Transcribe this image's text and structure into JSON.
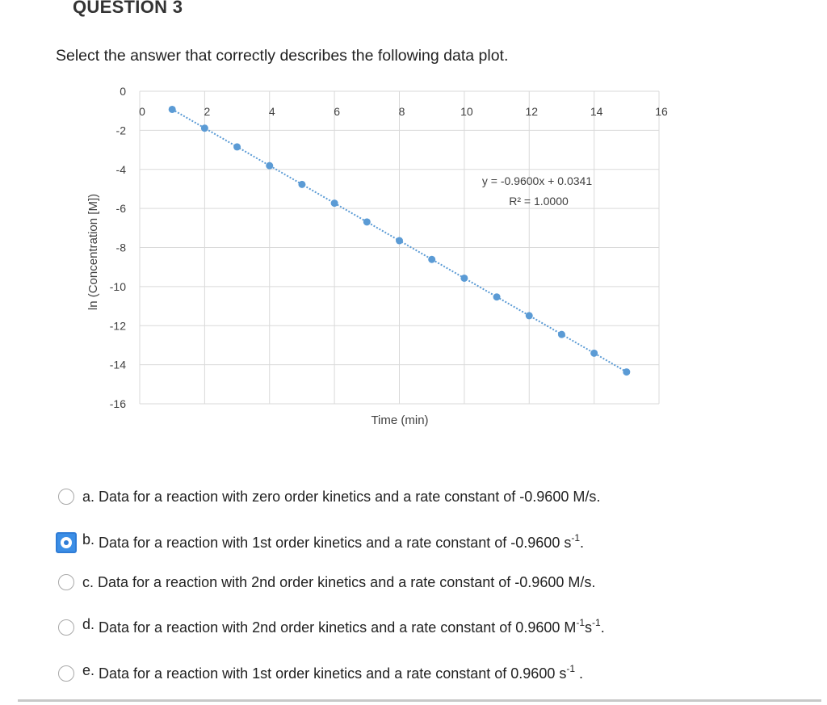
{
  "question": {
    "title": "QUESTION 3",
    "prompt": "Select the answer that correctly describes the following data plot."
  },
  "chart_data": {
    "type": "scatter",
    "title": "",
    "xlabel": "Time (min)",
    "ylabel": "ln (Concentration [M])",
    "xlim": [
      0,
      16
    ],
    "ylim": [
      -16,
      0
    ],
    "x_ticks": [
      "0",
      "2",
      "4",
      "6",
      "8",
      "10",
      "12",
      "14",
      "16"
    ],
    "y_ticks": [
      "0",
      "-2",
      "-4",
      "-6",
      "-8",
      "-10",
      "-12",
      "-14",
      "-16"
    ],
    "x": [
      1,
      2,
      3,
      4,
      5,
      6,
      7,
      8,
      9,
      10,
      11,
      12,
      13,
      14,
      15
    ],
    "y": [
      -0.93,
      -1.89,
      -2.85,
      -3.81,
      -4.77,
      -5.73,
      -6.69,
      -7.65,
      -8.61,
      -9.57,
      -10.53,
      -11.49,
      -12.45,
      -13.41,
      -14.37
    ],
    "trendline": {
      "slope": -0.96,
      "intercept": 0.0341,
      "equation": "y = -0.9600x + 0.0341",
      "r_squared": "R² = 1.0000"
    },
    "marker_color": "#5b9bd5",
    "grid": true
  },
  "answers": [
    {
      "letter": "a.",
      "text": "Data for a reaction with zero order kinetics and a rate constant of -0.9600 M/s.",
      "unit_base": "",
      "unit_sup": "",
      "unit_base2": "",
      "unit_sup2": "",
      "tail": "",
      "selected": false
    },
    {
      "letter": "b.",
      "text": "Data for a reaction with 1st order kinetics and a rate constant of -0.9600 ",
      "unit_base": "s",
      "unit_sup": "-1",
      "unit_base2": "",
      "unit_sup2": "",
      "tail": ".",
      "selected": true
    },
    {
      "letter": "c.",
      "text": "Data for a reaction with 2nd order kinetics and a rate constant of -0.9600 M/s.",
      "unit_base": "",
      "unit_sup": "",
      "unit_base2": "",
      "unit_sup2": "",
      "tail": "",
      "selected": false
    },
    {
      "letter": "d.",
      "text": "Data for a reaction with 2nd order kinetics and a rate constant of 0.9600 ",
      "unit_base": "M",
      "unit_sup": "-1",
      "unit_base2": "s",
      "unit_sup2": "-1",
      "tail": ".",
      "selected": false
    },
    {
      "letter": "e.",
      "text": "Data for a reaction with 1st order kinetics and a rate constant of 0.9600 ",
      "unit_base": "s",
      "unit_sup": "-1",
      "unit_base2": "",
      "unit_sup2": "",
      "tail": " .",
      "selected": false
    }
  ]
}
